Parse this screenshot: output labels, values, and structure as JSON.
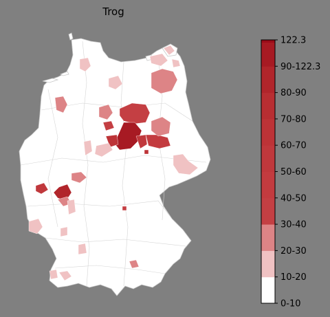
{
  "title": "Trog",
  "colors": {
    "background": "#808080",
    "land": "#ffffff",
    "borders": "#bdbdbd"
  },
  "legend": {
    "bins": [
      {
        "label": "0-10",
        "color": "#ffffff"
      },
      {
        "label": "10-20",
        "color": "#f0c2c3"
      },
      {
        "label": "20-30",
        "color": "#dd8486"
      },
      {
        "label": "30-40",
        "color": "#c43f43"
      },
      {
        "label": "40-50",
        "color": "#c33b3f"
      },
      {
        "label": "50-60",
        "color": "#c0383c"
      },
      {
        "label": "60-70",
        "color": "#bd3337"
      },
      {
        "label": "70-80",
        "color": "#b82e32"
      },
      {
        "label": "80-90",
        "color": "#b1252b"
      },
      {
        "label": "90-122.3",
        "color": "#a71a23"
      },
      {
        "label": "122.3",
        "color": "#9a0c19"
      }
    ]
  }
}
